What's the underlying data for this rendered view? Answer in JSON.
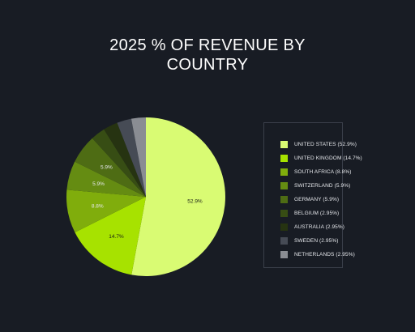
{
  "chart_data": {
    "type": "pie",
    "title": "2025 % OF REVENUE BY COUNTRY",
    "title_lines": [
      "2025 % OF REVENUE BY",
      "COUNTRY"
    ],
    "slices": [
      {
        "name": "UNITED STATES",
        "value": 52.9,
        "legend": "UNITED STATES (52.9%)",
        "label": "52.9%",
        "color": "#d9fb73"
      },
      {
        "name": "UNITED KINGDOM",
        "value": 14.7,
        "legend": "UNITED KINGDOM (14.7%)",
        "label": "14.7%",
        "color": "#a7e200"
      },
      {
        "name": "SOUTH AFRICA",
        "value": 8.8,
        "legend": "SOUTH AFRICA (8.8%)",
        "label": "8.8%",
        "color": "#80ad0c"
      },
      {
        "name": "SWITZERLAND",
        "value": 5.9,
        "legend": "SWITZERLAND (5.9%)",
        "label": "5.9%",
        "color": "#658c12"
      },
      {
        "name": "GERMANY",
        "value": 5.9,
        "legend": "GERMANY (5.9%)",
        "label": "5.9%",
        "color": "#4e6c14"
      },
      {
        "name": "BELGIUM",
        "value": 2.95,
        "legend": "BELGIUM (2.95%)",
        "label": "",
        "color": "#374d14"
      },
      {
        "name": "AUSTRALIA",
        "value": 2.95,
        "legend": "AUSTRALIA (2.95%)",
        "label": "",
        "color": "#263311"
      },
      {
        "name": "SWEDEN",
        "value": 2.95,
        "legend": "SWEDEN (2.95%)",
        "label": "",
        "color": "#464b55"
      },
      {
        "name": "NETHERLANDS",
        "value": 2.95,
        "legend": "NETHERLANDS (2.95%)",
        "label": "",
        "color": "#8a8d93"
      }
    ],
    "legend_placement": "right",
    "colors": {
      "background": "#181c24",
      "legend_border": "#3a3f4a",
      "label_dark": "#1a1f16",
      "label_light": "#e6e8ec"
    }
  }
}
